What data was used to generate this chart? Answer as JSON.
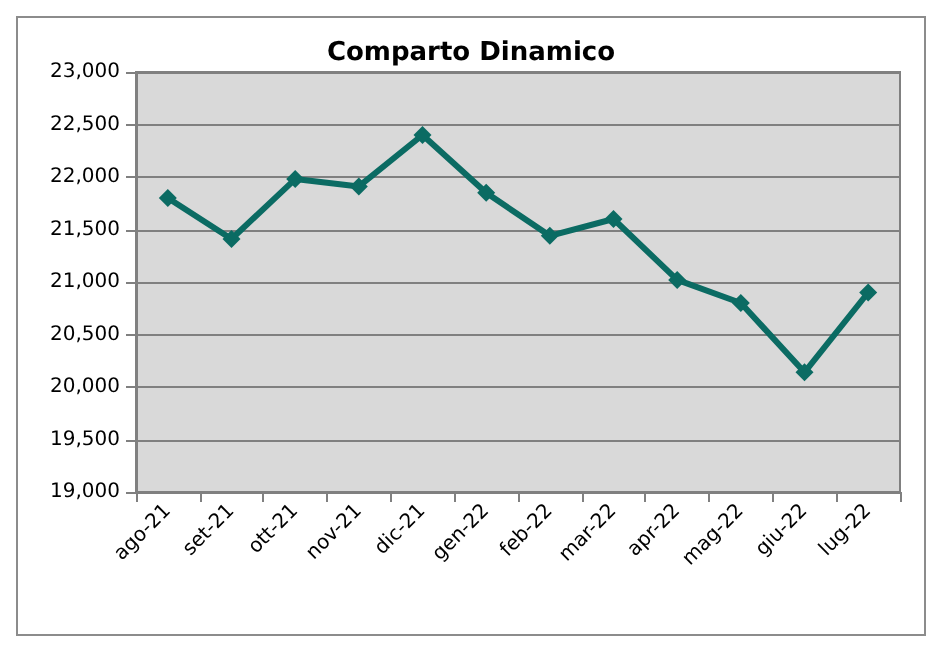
{
  "chart_data": {
    "type": "line",
    "title": "Comparto Dinamico",
    "categories": [
      "ago-21",
      "set-21",
      "ott-21",
      "nov-21",
      "dic-21",
      "gen-22",
      "feb-22",
      "mar-22",
      "apr-22",
      "mag-22",
      "giu-22",
      "lug-22"
    ],
    "series": [
      {
        "color": "#0b6b63",
        "values": [
          21800,
          21410,
          21980,
          21910,
          22400,
          21850,
          21440,
          21600,
          21020,
          20800,
          20140,
          20900
        ]
      }
    ],
    "ylim": [
      19000,
      23000
    ],
    "yticks": [
      {
        "value": 19000,
        "label": "19,000"
      },
      {
        "value": 19500,
        "label": "19,500"
      },
      {
        "value": 20000,
        "label": "20,000"
      },
      {
        "value": 20500,
        "label": "20,500"
      },
      {
        "value": 21000,
        "label": "21,000"
      },
      {
        "value": 21500,
        "label": "21,500"
      },
      {
        "value": 22000,
        "label": "22,000"
      },
      {
        "value": 22500,
        "label": "22,500"
      },
      {
        "value": 23000,
        "label": "23,000"
      }
    ],
    "grid": "y",
    "marker": "diamond",
    "line_style": "solid"
  }
}
